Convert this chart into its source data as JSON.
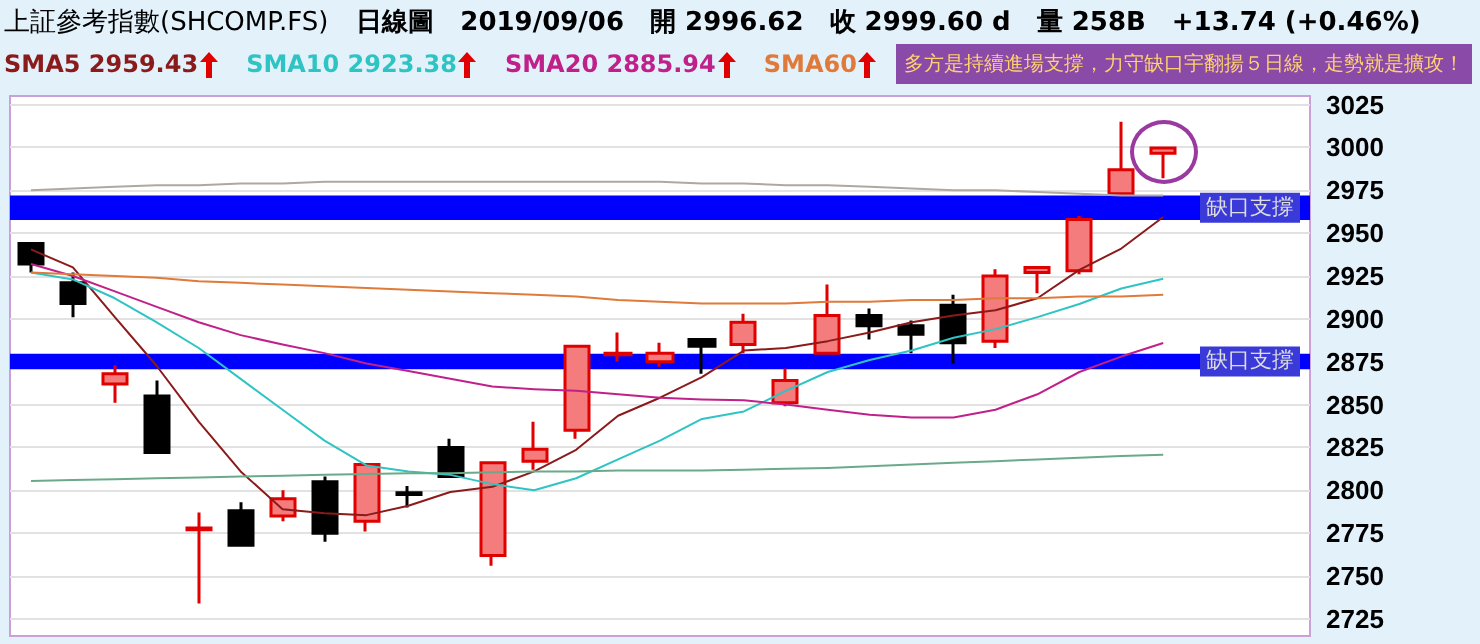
{
  "chart_data": {
    "type": "candlestick",
    "title": "上証參考指數(SHCOMP.FS)",
    "subtitle": "日線圖　2019/09/06　開 2996.62　收 2999.60 d　量 258B　+13.74 (+0.46%)",
    "annotations": [
      "多方是持續進場支撐，力守缺口宇翻揚５日線，走勢就是擴攻！"
    ],
    "categories": [
      null,
      null,
      null,
      null,
      null,
      null,
      null,
      null,
      null,
      null,
      null,
      null,
      null,
      null,
      null,
      null,
      null,
      null,
      null,
      null,
      null,
      null,
      null,
      null,
      null,
      null,
      null,
      null
    ],
    "ohlc": [
      [
        2944,
        2944,
        2927,
        2932
      ],
      [
        2921,
        2927,
        2901,
        2909
      ],
      [
        2862,
        2873,
        2851,
        2868
      ],
      [
        2855,
        2864,
        2822,
        2822
      ],
      [
        2777,
        2787,
        2734,
        2778
      ],
      [
        2788,
        2793,
        2768,
        2768
      ],
      [
        2785,
        2800,
        2782,
        2795
      ],
      [
        2805,
        2808,
        2770,
        2775
      ],
      [
        2782,
        2815,
        2776,
        2815
      ],
      [
        2798.5,
        2802.5,
        2790,
        2797.5
      ],
      [
        2825,
        2830,
        2808,
        2808
      ],
      [
        2762,
        2816,
        2756,
        2816
      ],
      [
        2817,
        2840,
        2812,
        2824
      ],
      [
        2835,
        2884,
        2830,
        2884
      ],
      [
        2879,
        2892,
        2875,
        2880
      ],
      [
        2875,
        2886,
        2872,
        2880
      ],
      [
        2888,
        2888,
        2868,
        2884
      ],
      [
        2885,
        2903,
        2880,
        2898
      ],
      [
        2851,
        2871,
        2849,
        2864
      ],
      [
        2880,
        2920,
        2880,
        2902
      ],
      [
        2902,
        2906,
        2888,
        2896
      ],
      [
        2896,
        2899,
        2880,
        2891
      ],
      [
        2908,
        2914,
        2874,
        2886
      ],
      [
        2887,
        2929,
        2883,
        2925
      ],
      [
        2927,
        2930,
        2915,
        2930
      ],
      [
        2928,
        2960,
        2926,
        2958
      ],
      [
        2973,
        3015,
        2973,
        2987
      ],
      [
        2996.62,
        3000.5,
        2982,
        2999.6
      ]
    ],
    "series": [
      {
        "type": "line",
        "name": "SMA5 2959.43",
        "color": "#8b1a1a",
        "values": [
          2940.5,
          2930,
          2901,
          2872.5,
          2840,
          2811,
          2789,
          2786.6,
          2785.5,
          2791,
          2799,
          2802,
          2811,
          2823.6,
          2843.5,
          2854,
          2866,
          2881.5,
          2883,
          2887,
          2892,
          2898,
          2902,
          2905,
          2912,
          2928.6,
          2941,
          2959.43
        ]
      },
      {
        "type": "line",
        "name": "SMA10 2923.38",
        "color": "#2ec4c4",
        "values": [
          2927,
          2923,
          2912,
          2898,
          2883,
          2865,
          2847,
          2829,
          2814.5,
          2811,
          2809,
          2803.6,
          2800,
          2807,
          2818,
          2829,
          2841.6,
          2846,
          2858,
          2869,
          2876,
          2881.5,
          2889,
          2894,
          2901,
          2908.7,
          2917.7,
          2923.38
        ]
      },
      {
        "type": "line",
        "name": "SMA20 2885.94",
        "color": "#c0208a",
        "values": [
          2932,
          2925,
          2916,
          2907,
          2898,
          2890.5,
          2885,
          2880,
          2874,
          2869.6,
          2865,
          2860.5,
          2859,
          2858,
          2856,
          2854,
          2853,
          2852.5,
          2850,
          2847,
          2844,
          2842.4,
          2842.4,
          2847,
          2856,
          2869,
          2878,
          2885.94
        ]
      },
      {
        "type": "line",
        "name": "SMA60",
        "color": "#e07a3a",
        "values": [
          2927,
          2926,
          2925,
          2924,
          2922,
          2921,
          2920,
          2919,
          2918,
          2917,
          2916,
          2915,
          2914,
          2913,
          2911,
          2910,
          2909,
          2909,
          2909,
          2910,
          2910,
          2911,
          2911,
          2912,
          2912,
          2913,
          2913,
          2914
        ]
      },
      {
        "type": "line",
        "color": "#b0a8a0",
        "values": [
          2975,
          2976,
          2977,
          2978,
          2978,
          2979,
          2979,
          2980,
          2980,
          2980,
          2980,
          2980,
          2980,
          2980,
          2980,
          2980,
          2979,
          2979,
          2978,
          2978,
          2977,
          2976,
          2975,
          2975,
          2974,
          2973,
          2972,
          2972
        ]
      },
      {
        "type": "line",
        "color": "#6aaa8a",
        "values": [
          2805.4,
          2806,
          2806.5,
          2807,
          2807.5,
          2808,
          2808.5,
          2809,
          2809.5,
          2810,
          2810,
          2810.5,
          2811,
          2811,
          2811.5,
          2811.5,
          2811.6,
          2812,
          2812.5,
          2813,
          2814,
          2815,
          2816,
          2817,
          2818,
          2819,
          2820,
          2820.7
        ]
      }
    ],
    "bands": [
      {
        "axis": "y",
        "from": 2957.6,
        "to": 2972,
        "label": "缺口支撐",
        "color": "#0000ff"
      },
      {
        "axis": "y",
        "from": 2870.6,
        "to": 2879.7,
        "label": "缺口支撐",
        "color": "#0000ff"
      }
    ],
    "ylim": [
      2715,
      3030
    ],
    "yticks": [
      2725,
      2750,
      2775,
      2800,
      2825,
      2850,
      2875,
      2900,
      2925,
      2950,
      2975,
      3000,
      3025
    ],
    "grid": "y",
    "legend": "top left",
    "marker": "none"
  }
}
